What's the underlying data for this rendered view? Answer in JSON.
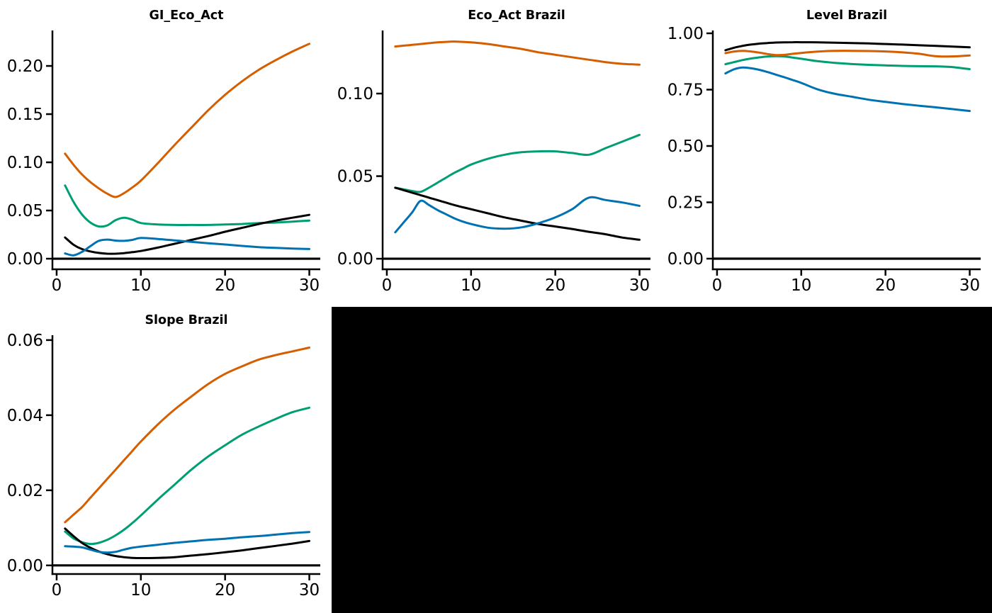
{
  "figure": {
    "background": "#ffffff",
    "black_panel_color": "#000000"
  },
  "palette": {
    "black": "#000000",
    "orange": "#D55E00",
    "green": "#009E73",
    "blue": "#0072B2"
  },
  "chart_data": [
    {
      "type": "line",
      "title": "GI_Eco_Act",
      "xlabel": "",
      "ylabel": "",
      "legend_position": "none",
      "grid": false,
      "zero_line": true,
      "xlim": [
        -0.5,
        31.3
      ],
      "ylim": [
        -0.011,
        0.2368
      ],
      "xticks": {
        "values": [
          0,
          10,
          20,
          30
        ],
        "labels": [
          "0",
          "10",
          "20",
          "30"
        ]
      },
      "yticks": {
        "values": [
          0,
          0.05,
          0.1,
          0.15,
          0.2
        ],
        "labels": [
          "0.00",
          "0.05",
          "0.10",
          "0.15",
          "0.20"
        ]
      },
      "x": [
        1,
        2,
        3,
        4,
        5,
        6,
        7,
        8,
        9,
        10,
        12,
        14,
        16,
        18,
        20,
        22,
        24,
        26,
        28,
        30
      ],
      "series": [
        {
          "name": "green",
          "color": "green",
          "values": [
            0.076,
            0.059,
            0.046,
            0.0375,
            0.0335,
            0.0345,
            0.04,
            0.0425,
            0.0405,
            0.037,
            0.0355,
            0.035,
            0.035,
            0.035,
            0.0355,
            0.036,
            0.037,
            0.0375,
            0.0385,
            0.0395
          ]
        },
        {
          "name": "orange",
          "color": "orange",
          "values": [
            0.109,
            0.0975,
            0.0875,
            0.0795,
            0.073,
            0.0675,
            0.064,
            0.068,
            0.074,
            0.081,
            0.099,
            0.118,
            0.136,
            0.154,
            0.17,
            0.184,
            0.196,
            0.206,
            0.215,
            0.223
          ]
        },
        {
          "name": "black",
          "color": "black",
          "values": [
            0.022,
            0.0145,
            0.01,
            0.0075,
            0.006,
            0.0052,
            0.0052,
            0.0058,
            0.0068,
            0.008,
            0.0115,
            0.0155,
            0.0195,
            0.0235,
            0.028,
            0.032,
            0.036,
            0.0395,
            0.0425,
            0.0455
          ]
        },
        {
          "name": "blue",
          "color": "blue",
          "values": [
            0.0055,
            0.0035,
            0.007,
            0.013,
            0.0185,
            0.0198,
            0.0188,
            0.0185,
            0.0195,
            0.0215,
            0.0205,
            0.019,
            0.0175,
            0.016,
            0.0147,
            0.0133,
            0.012,
            0.0112,
            0.0105,
            0.01
          ]
        }
      ]
    },
    {
      "type": "line",
      "title": "Eco_Act Brazil",
      "xlabel": "",
      "ylabel": "",
      "legend_position": "none",
      "grid": false,
      "zero_line": true,
      "xlim": [
        -0.5,
        31.3
      ],
      "ylim": [
        -0.0064,
        0.1382
      ],
      "xticks": {
        "values": [
          0,
          10,
          20,
          30
        ],
        "labels": [
          "0",
          "10",
          "20",
          "30"
        ]
      },
      "yticks": {
        "values": [
          0,
          0.05,
          0.1
        ],
        "labels": [
          "0.00",
          "0.05",
          "0.10"
        ]
      },
      "x": [
        1,
        2,
        3,
        4,
        5,
        6,
        7,
        8,
        9,
        10,
        12,
        14,
        16,
        18,
        20,
        22,
        24,
        26,
        28,
        30
      ],
      "series": [
        {
          "name": "green",
          "color": "green",
          "values": [
            0.043,
            0.042,
            0.041,
            0.0405,
            0.043,
            0.046,
            0.049,
            0.052,
            0.0545,
            0.057,
            0.0605,
            0.063,
            0.0645,
            0.065,
            0.065,
            0.064,
            0.063,
            0.067,
            0.071,
            0.075
          ]
        },
        {
          "name": "orange",
          "color": "orange",
          "values": [
            0.1285,
            0.129,
            0.1295,
            0.13,
            0.1305,
            0.131,
            0.1313,
            0.1315,
            0.1313,
            0.131,
            0.13,
            0.1285,
            0.127,
            0.125,
            0.1235,
            0.122,
            0.1205,
            0.119,
            0.118,
            0.1175
          ]
        },
        {
          "name": "black",
          "color": "black",
          "values": [
            0.043,
            0.0415,
            0.04,
            0.0385,
            0.037,
            0.0355,
            0.034,
            0.0325,
            0.0312,
            0.03,
            0.0275,
            0.025,
            0.023,
            0.021,
            0.0195,
            0.018,
            0.0163,
            0.0148,
            0.0128,
            0.0115
          ]
        },
        {
          "name": "blue",
          "color": "blue",
          "values": [
            0.016,
            0.022,
            0.028,
            0.035,
            0.0325,
            0.0295,
            0.027,
            0.0245,
            0.0225,
            0.021,
            0.0188,
            0.0182,
            0.019,
            0.0215,
            0.025,
            0.03,
            0.037,
            0.0355,
            0.034,
            0.032
          ]
        }
      ]
    },
    {
      "type": "line",
      "title": "Level Brazil",
      "xlabel": "",
      "ylabel": "",
      "legend_position": "none",
      "grid": false,
      "zero_line": true,
      "xlim": [
        -0.5,
        31.3
      ],
      "ylim": [
        -0.0472,
        1.0126
      ],
      "xticks": {
        "values": [
          0,
          10,
          20,
          30
        ],
        "labels": [
          "0",
          "10",
          "20",
          "30"
        ]
      },
      "yticks": {
        "values": [
          0,
          0.25,
          0.5,
          0.75,
          1.0
        ],
        "labels": [
          "0.00",
          "0.25",
          "0.50",
          "0.75",
          "1.00"
        ]
      },
      "x": [
        1,
        2,
        3,
        4,
        5,
        6,
        7,
        8,
        9,
        10,
        12,
        14,
        16,
        18,
        20,
        22,
        24,
        26,
        28,
        30
      ],
      "series": [
        {
          "name": "green",
          "color": "green",
          "values": [
            0.863,
            0.872,
            0.881,
            0.888,
            0.893,
            0.897,
            0.8985,
            0.897,
            0.8925,
            0.887,
            0.876,
            0.869,
            0.8635,
            0.86,
            0.8575,
            0.8555,
            0.854,
            0.8535,
            0.85,
            0.841
          ]
        },
        {
          "name": "orange",
          "color": "orange",
          "values": [
            0.912,
            0.919,
            0.9225,
            0.9195,
            0.9145,
            0.908,
            0.9035,
            0.9045,
            0.909,
            0.913,
            0.919,
            0.922,
            0.9225,
            0.9215,
            0.9195,
            0.9155,
            0.909,
            0.898,
            0.8975,
            0.902
          ]
        },
        {
          "name": "black",
          "color": "black",
          "values": [
            0.925,
            0.936,
            0.944,
            0.95,
            0.954,
            0.957,
            0.959,
            0.96,
            0.9605,
            0.9605,
            0.96,
            0.9585,
            0.957,
            0.955,
            0.9525,
            0.95,
            0.947,
            0.944,
            0.941,
            0.938
          ]
        },
        {
          "name": "blue",
          "color": "blue",
          "values": [
            0.822,
            0.84,
            0.848,
            0.845,
            0.838,
            0.828,
            0.8165,
            0.805,
            0.7925,
            0.78,
            0.7505,
            0.7315,
            0.7185,
            0.7055,
            0.6955,
            0.6865,
            0.6785,
            0.6715,
            0.6635,
            0.6555
          ]
        }
      ]
    },
    {
      "type": "line",
      "title": "Slope Brazil",
      "xlabel": "",
      "ylabel": "",
      "legend_position": "none",
      "grid": false,
      "zero_line": true,
      "xlim": [
        -0.5,
        31.3
      ],
      "ylim": [
        -0.0023,
        0.0613
      ],
      "xticks": {
        "values": [
          0,
          10,
          20,
          30
        ],
        "labels": [
          "0",
          "10",
          "20",
          "30"
        ]
      },
      "yticks": {
        "values": [
          0,
          0.02,
          0.04,
          0.06
        ],
        "labels": [
          "0.00",
          "0.02",
          "0.04",
          "0.06"
        ]
      },
      "x": [
        1,
        2,
        3,
        4,
        5,
        6,
        7,
        8,
        9,
        10,
        12,
        14,
        16,
        18,
        20,
        22,
        24,
        26,
        28,
        30
      ],
      "series": [
        {
          "name": "green",
          "color": "green",
          "values": [
            0.009,
            0.0072,
            0.0062,
            0.0057,
            0.006,
            0.0068,
            0.008,
            0.0095,
            0.0113,
            0.0133,
            0.0175,
            0.0215,
            0.0255,
            0.029,
            0.032,
            0.0348,
            0.037,
            0.039,
            0.0408,
            0.042
          ]
        },
        {
          "name": "orange",
          "color": "orange",
          "values": [
            0.0115,
            0.0135,
            0.0155,
            0.018,
            0.0205,
            0.023,
            0.0255,
            0.028,
            0.0305,
            0.033,
            0.0375,
            0.0415,
            0.045,
            0.0483,
            0.051,
            0.053,
            0.0548,
            0.056,
            0.057,
            0.058
          ]
        },
        {
          "name": "black",
          "color": "black",
          "values": [
            0.0098,
            0.0078,
            0.006,
            0.0047,
            0.0037,
            0.003,
            0.0025,
            0.0022,
            0.002,
            0.00195,
            0.002,
            0.0022,
            0.0026,
            0.003,
            0.0035,
            0.004,
            0.0046,
            0.0052,
            0.0058,
            0.0065
          ]
        },
        {
          "name": "blue",
          "color": "blue",
          "values": [
            0.0051,
            0.005,
            0.0048,
            0.0042,
            0.0036,
            0.0034,
            0.0036,
            0.0042,
            0.0047,
            0.005,
            0.0055,
            0.006,
            0.0064,
            0.0068,
            0.0071,
            0.0075,
            0.0078,
            0.0082,
            0.0086,
            0.0089
          ]
        }
      ]
    }
  ]
}
